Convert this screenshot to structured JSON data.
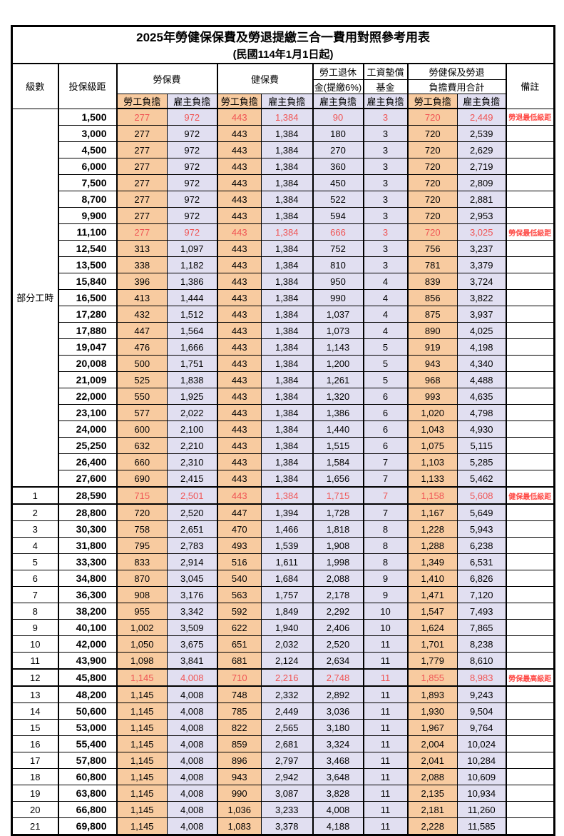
{
  "title": "2025年勞健保保費及勞退提繳三合一費用對照參考用表",
  "subtitle": "(民國114年1月1日起)",
  "header": {
    "level": "級數",
    "bracket": "投保級距",
    "labor_ins": "勞保費",
    "health_ins": "健保費",
    "pension_line1": "勞工退休",
    "pension_line2": "金(提繳6%)",
    "wage_fund_line1": "工資墊償",
    "wage_fund_line2": "基金",
    "total_line1": "勞健保及勞退",
    "total_line2": "負擔費用合計",
    "employee_share": "勞工負擔",
    "employer_share": "雇主負擔",
    "remark": "備註"
  },
  "part_time_label": "部分工時",
  "part_time_span": 23,
  "highlight_rows": [
    0,
    7,
    23,
    34
  ],
  "thick_rows": [
    23,
    34
  ],
  "colors": {
    "employee_bg": "#F8CBA0",
    "employer_bg": "#E1DFF1",
    "highlight_red": "#F05454",
    "remark_red": "#FF4A45"
  },
  "columns_order": [
    "level",
    "bracket",
    "labor_emp",
    "labor_er",
    "health_emp",
    "health_er",
    "pension_er",
    "fund_er",
    "total_emp",
    "total_er",
    "remark"
  ],
  "rows": [
    [
      "",
      "1,500",
      "277",
      "972",
      "443",
      "1,384",
      "90",
      "3",
      "720",
      "2,449",
      "勞退最低級距"
    ],
    [
      "",
      "3,000",
      "277",
      "972",
      "443",
      "1,384",
      "180",
      "3",
      "720",
      "2,539",
      ""
    ],
    [
      "",
      "4,500",
      "277",
      "972",
      "443",
      "1,384",
      "270",
      "3",
      "720",
      "2,629",
      ""
    ],
    [
      "",
      "6,000",
      "277",
      "972",
      "443",
      "1,384",
      "360",
      "3",
      "720",
      "2,719",
      ""
    ],
    [
      "",
      "7,500",
      "277",
      "972",
      "443",
      "1,384",
      "450",
      "3",
      "720",
      "2,809",
      ""
    ],
    [
      "",
      "8,700",
      "277",
      "972",
      "443",
      "1,384",
      "522",
      "3",
      "720",
      "2,881",
      ""
    ],
    [
      "",
      "9,900",
      "277",
      "972",
      "443",
      "1,384",
      "594",
      "3",
      "720",
      "2,953",
      ""
    ],
    [
      "",
      "11,100",
      "277",
      "972",
      "443",
      "1,384",
      "666",
      "3",
      "720",
      "3,025",
      "勞保最低級距"
    ],
    [
      "",
      "12,540",
      "313",
      "1,097",
      "443",
      "1,384",
      "752",
      "3",
      "756",
      "3,237",
      ""
    ],
    [
      "",
      "13,500",
      "338",
      "1,182",
      "443",
      "1,384",
      "810",
      "3",
      "781",
      "3,379",
      ""
    ],
    [
      "",
      "15,840",
      "396",
      "1,386",
      "443",
      "1,384",
      "950",
      "4",
      "839",
      "3,724",
      ""
    ],
    [
      "",
      "16,500",
      "413",
      "1,444",
      "443",
      "1,384",
      "990",
      "4",
      "856",
      "3,822",
      ""
    ],
    [
      "",
      "17,280",
      "432",
      "1,512",
      "443",
      "1,384",
      "1,037",
      "4",
      "875",
      "3,937",
      ""
    ],
    [
      "",
      "17,880",
      "447",
      "1,564",
      "443",
      "1,384",
      "1,073",
      "4",
      "890",
      "4,025",
      ""
    ],
    [
      "",
      "19,047",
      "476",
      "1,666",
      "443",
      "1,384",
      "1,143",
      "5",
      "919",
      "4,198",
      ""
    ],
    [
      "",
      "20,008",
      "500",
      "1,751",
      "443",
      "1,384",
      "1,200",
      "5",
      "943",
      "4,340",
      ""
    ],
    [
      "",
      "21,009",
      "525",
      "1,838",
      "443",
      "1,384",
      "1,261",
      "5",
      "968",
      "4,488",
      ""
    ],
    [
      "",
      "22,000",
      "550",
      "1,925",
      "443",
      "1,384",
      "1,320",
      "6",
      "993",
      "4,635",
      ""
    ],
    [
      "",
      "23,100",
      "577",
      "2,022",
      "443",
      "1,384",
      "1,386",
      "6",
      "1,020",
      "4,798",
      ""
    ],
    [
      "",
      "24,000",
      "600",
      "2,100",
      "443",
      "1,384",
      "1,440",
      "6",
      "1,043",
      "4,930",
      ""
    ],
    [
      "",
      "25,250",
      "632",
      "2,210",
      "443",
      "1,384",
      "1,515",
      "6",
      "1,075",
      "5,115",
      ""
    ],
    [
      "",
      "26,400",
      "660",
      "2,310",
      "443",
      "1,384",
      "1,584",
      "7",
      "1,103",
      "5,285",
      ""
    ],
    [
      "",
      "27,600",
      "690",
      "2,415",
      "443",
      "1,384",
      "1,656",
      "7",
      "1,133",
      "5,462",
      ""
    ],
    [
      "1",
      "28,590",
      "715",
      "2,501",
      "443",
      "1,384",
      "1,715",
      "7",
      "1,158",
      "5,608",
      "健保最低級距"
    ],
    [
      "2",
      "28,800",
      "720",
      "2,520",
      "447",
      "1,394",
      "1,728",
      "7",
      "1,167",
      "5,649",
      ""
    ],
    [
      "3",
      "30,300",
      "758",
      "2,651",
      "470",
      "1,466",
      "1,818",
      "8",
      "1,228",
      "5,943",
      ""
    ],
    [
      "4",
      "31,800",
      "795",
      "2,783",
      "493",
      "1,539",
      "1,908",
      "8",
      "1,288",
      "6,238",
      ""
    ],
    [
      "5",
      "33,300",
      "833",
      "2,914",
      "516",
      "1,611",
      "1,998",
      "8",
      "1,349",
      "6,531",
      ""
    ],
    [
      "6",
      "34,800",
      "870",
      "3,045",
      "540",
      "1,684",
      "2,088",
      "9",
      "1,410",
      "6,826",
      ""
    ],
    [
      "7",
      "36,300",
      "908",
      "3,176",
      "563",
      "1,757",
      "2,178",
      "9",
      "1,471",
      "7,120",
      ""
    ],
    [
      "8",
      "38,200",
      "955",
      "3,342",
      "592",
      "1,849",
      "2,292",
      "10",
      "1,547",
      "7,493",
      ""
    ],
    [
      "9",
      "40,100",
      "1,002",
      "3,509",
      "622",
      "1,940",
      "2,406",
      "10",
      "1,624",
      "7,865",
      ""
    ],
    [
      "10",
      "42,000",
      "1,050",
      "3,675",
      "651",
      "2,032",
      "2,520",
      "11",
      "1,701",
      "8,238",
      ""
    ],
    [
      "11",
      "43,900",
      "1,098",
      "3,841",
      "681",
      "2,124",
      "2,634",
      "11",
      "1,779",
      "8,610",
      ""
    ],
    [
      "12",
      "45,800",
      "1,145",
      "4,008",
      "710",
      "2,216",
      "2,748",
      "11",
      "1,855",
      "8,983",
      "勞保最高級距"
    ],
    [
      "13",
      "48,200",
      "1,145",
      "4,008",
      "748",
      "2,332",
      "2,892",
      "11",
      "1,893",
      "9,243",
      ""
    ],
    [
      "14",
      "50,600",
      "1,145",
      "4,008",
      "785",
      "2,449",
      "3,036",
      "11",
      "1,930",
      "9,504",
      ""
    ],
    [
      "15",
      "53,000",
      "1,145",
      "4,008",
      "822",
      "2,565",
      "3,180",
      "11",
      "1,967",
      "9,764",
      ""
    ],
    [
      "16",
      "55,400",
      "1,145",
      "4,008",
      "859",
      "2,681",
      "3,324",
      "11",
      "2,004",
      "10,024",
      ""
    ],
    [
      "17",
      "57,800",
      "1,145",
      "4,008",
      "896",
      "2,797",
      "3,468",
      "11",
      "2,041",
      "10,284",
      ""
    ],
    [
      "18",
      "60,800",
      "1,145",
      "4,008",
      "943",
      "2,942",
      "3,648",
      "11",
      "2,088",
      "10,609",
      ""
    ],
    [
      "19",
      "63,800",
      "1,145",
      "4,008",
      "990",
      "3,087",
      "3,828",
      "11",
      "2,135",
      "10,934",
      ""
    ],
    [
      "20",
      "66,800",
      "1,145",
      "4,008",
      "1,036",
      "3,233",
      "4,008",
      "11",
      "2,181",
      "11,260",
      ""
    ],
    [
      "21",
      "69,800",
      "1,145",
      "4,008",
      "1,083",
      "3,378",
      "4,188",
      "11",
      "2,228",
      "11,585",
      ""
    ]
  ]
}
